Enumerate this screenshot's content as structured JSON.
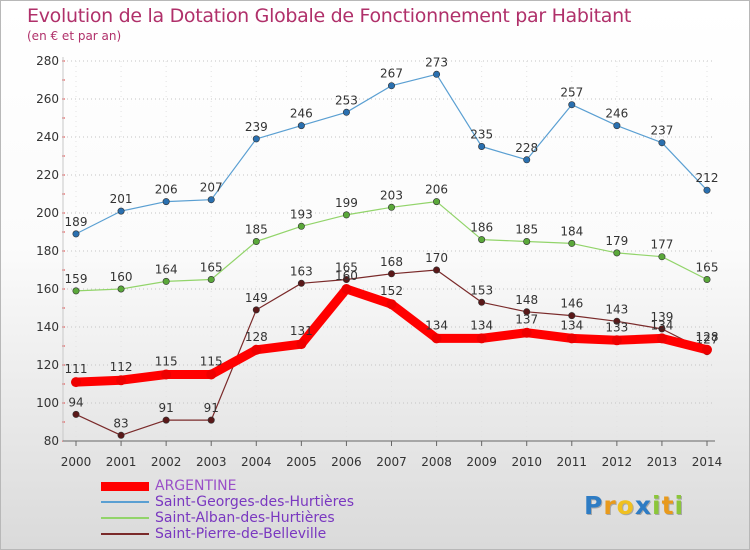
{
  "chart_data": {
    "type": "line",
    "title": "Evolution de la Dotation Globale de Fonctionnement par Habitant",
    "subtitle": "(en € et par an)",
    "xlabel": "",
    "ylabel": "",
    "ylim": [
      80,
      280
    ],
    "yticks": [
      80,
      100,
      120,
      140,
      160,
      180,
      200,
      220,
      240,
      260,
      280
    ],
    "x": [
      "2000",
      "2001",
      "2002",
      "2003",
      "2004",
      "2005",
      "2006",
      "2007",
      "2008",
      "2009",
      "2010",
      "2011",
      "2012",
      "2013",
      "2014"
    ],
    "grid": "horizontal-dotted",
    "legend_position": "bottom-left",
    "series": [
      {
        "name": "Saint-Georges-des-Hurtières",
        "color": "#5a9fd2",
        "point_color": "#2a70b0",
        "width": 1.2,
        "values": [
          189,
          201,
          206,
          207,
          239,
          246,
          253,
          267,
          273,
          235,
          228,
          257,
          246,
          237,
          212
        ]
      },
      {
        "name": "Saint-Alban-des-Hurtières",
        "color": "#92d46a",
        "point_color": "#5aa83a",
        "width": 1.2,
        "values": [
          159,
          160,
          164,
          165,
          185,
          193,
          199,
          203,
          206,
          186,
          185,
          184,
          179,
          177,
          165
        ]
      },
      {
        "name": "Saint-Pierre-de-Belleville",
        "color": "#7a2a2a",
        "point_color": "#5a1818",
        "width": 1.2,
        "values": [
          94,
          83,
          91,
          91,
          149,
          163,
          165,
          168,
          170,
          153,
          148,
          146,
          143,
          139,
          127
        ]
      },
      {
        "name": "ARGENTINE",
        "color": "#ff0000",
        "point_color": "#ee0000",
        "width": 9,
        "values": [
          111,
          112,
          115,
          115,
          128,
          131,
          160,
          152,
          134,
          134,
          137,
          134,
          133,
          134,
          128
        ]
      }
    ]
  },
  "legend": {
    "items": [
      {
        "label": "ARGENTINE",
        "color": "#ff0000",
        "label_color": "#9a4fc8"
      },
      {
        "label": "Saint-Georges-des-Hurtières",
        "color": "#5a9fd2",
        "label_color": "#7a38c0"
      },
      {
        "label": "Saint-Alban-des-Hurtières",
        "color": "#92d46a",
        "label_color": "#7a38c0"
      },
      {
        "label": "Saint-Pierre-de-Belleville",
        "color": "#7a2a2a",
        "label_color": "#7a38c0"
      }
    ]
  },
  "logo": {
    "letters": [
      {
        "ch": "P",
        "color": "#2e7cc4"
      },
      {
        "ch": "r",
        "color": "#e89a1c"
      },
      {
        "ch": "o",
        "color": "#f0c020"
      },
      {
        "ch": "x",
        "color": "#2e7cc4"
      },
      {
        "ch": "i",
        "color": "#8cc63a"
      },
      {
        "ch": "t",
        "color": "#e89a1c"
      },
      {
        "ch": "i",
        "color": "#8cc63a"
      }
    ]
  }
}
